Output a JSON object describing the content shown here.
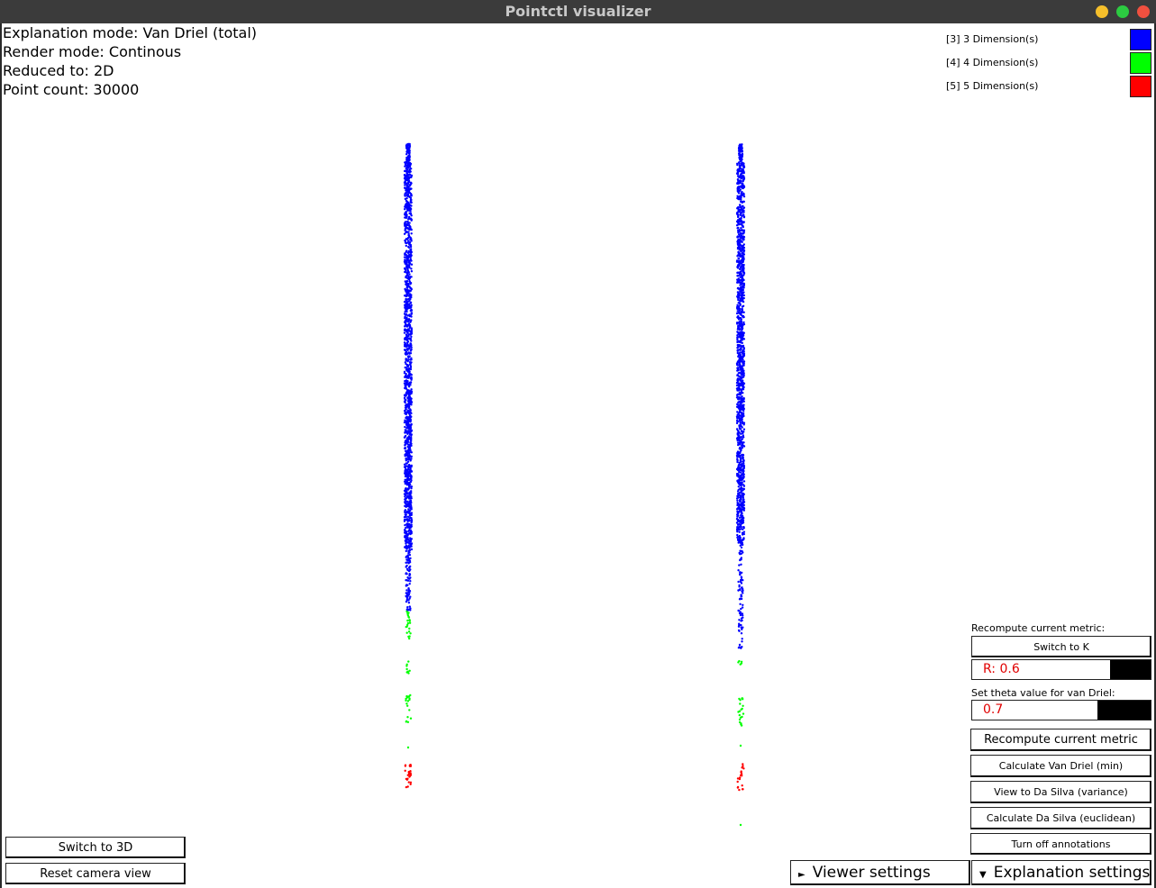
{
  "window": {
    "title": "Pointctl visualizer"
  },
  "info": {
    "explanation_mode": "Explanation mode: Van Driel (total)",
    "render_mode": "Render mode: Continous",
    "reduced_to": "Reduced to: 2D",
    "point_count": "Point count: 30000"
  },
  "legend": [
    {
      "label": "[3] 3 Dimension(s)",
      "color": "#0000ff"
    },
    {
      "label": "[4] 4 Dimension(s)",
      "color": "#00ff00"
    },
    {
      "label": "[5] 5 Dimension(s)",
      "color": "#ff0000"
    }
  ],
  "panel": {
    "recompute_label": "Recompute current metric:",
    "switch_k": "Switch to K",
    "r_slider": {
      "text": "R: 0.6",
      "value": 0.6
    },
    "theta_label": "Set theta value for van Driel:",
    "theta_slider": {
      "text": "0.7",
      "value": 0.7
    },
    "recompute_button": "Recompute current metric",
    "calc_van_driel_min": "Calculate Van Driel (min)",
    "view_da_silva_variance": "View to Da Silva (variance)",
    "calc_da_silva_euclidean": "Calculate Da Silva (euclidean)",
    "turn_off_annotations": "Turn off annotations"
  },
  "bottom": {
    "switch_3d": "Switch to 3D",
    "reset_camera": "Reset camera view",
    "viewer_settings": "Viewer settings",
    "explanation_settings": "Explanation settings",
    "viewer_arrow": "►",
    "explanation_arrow": "▼"
  }
}
